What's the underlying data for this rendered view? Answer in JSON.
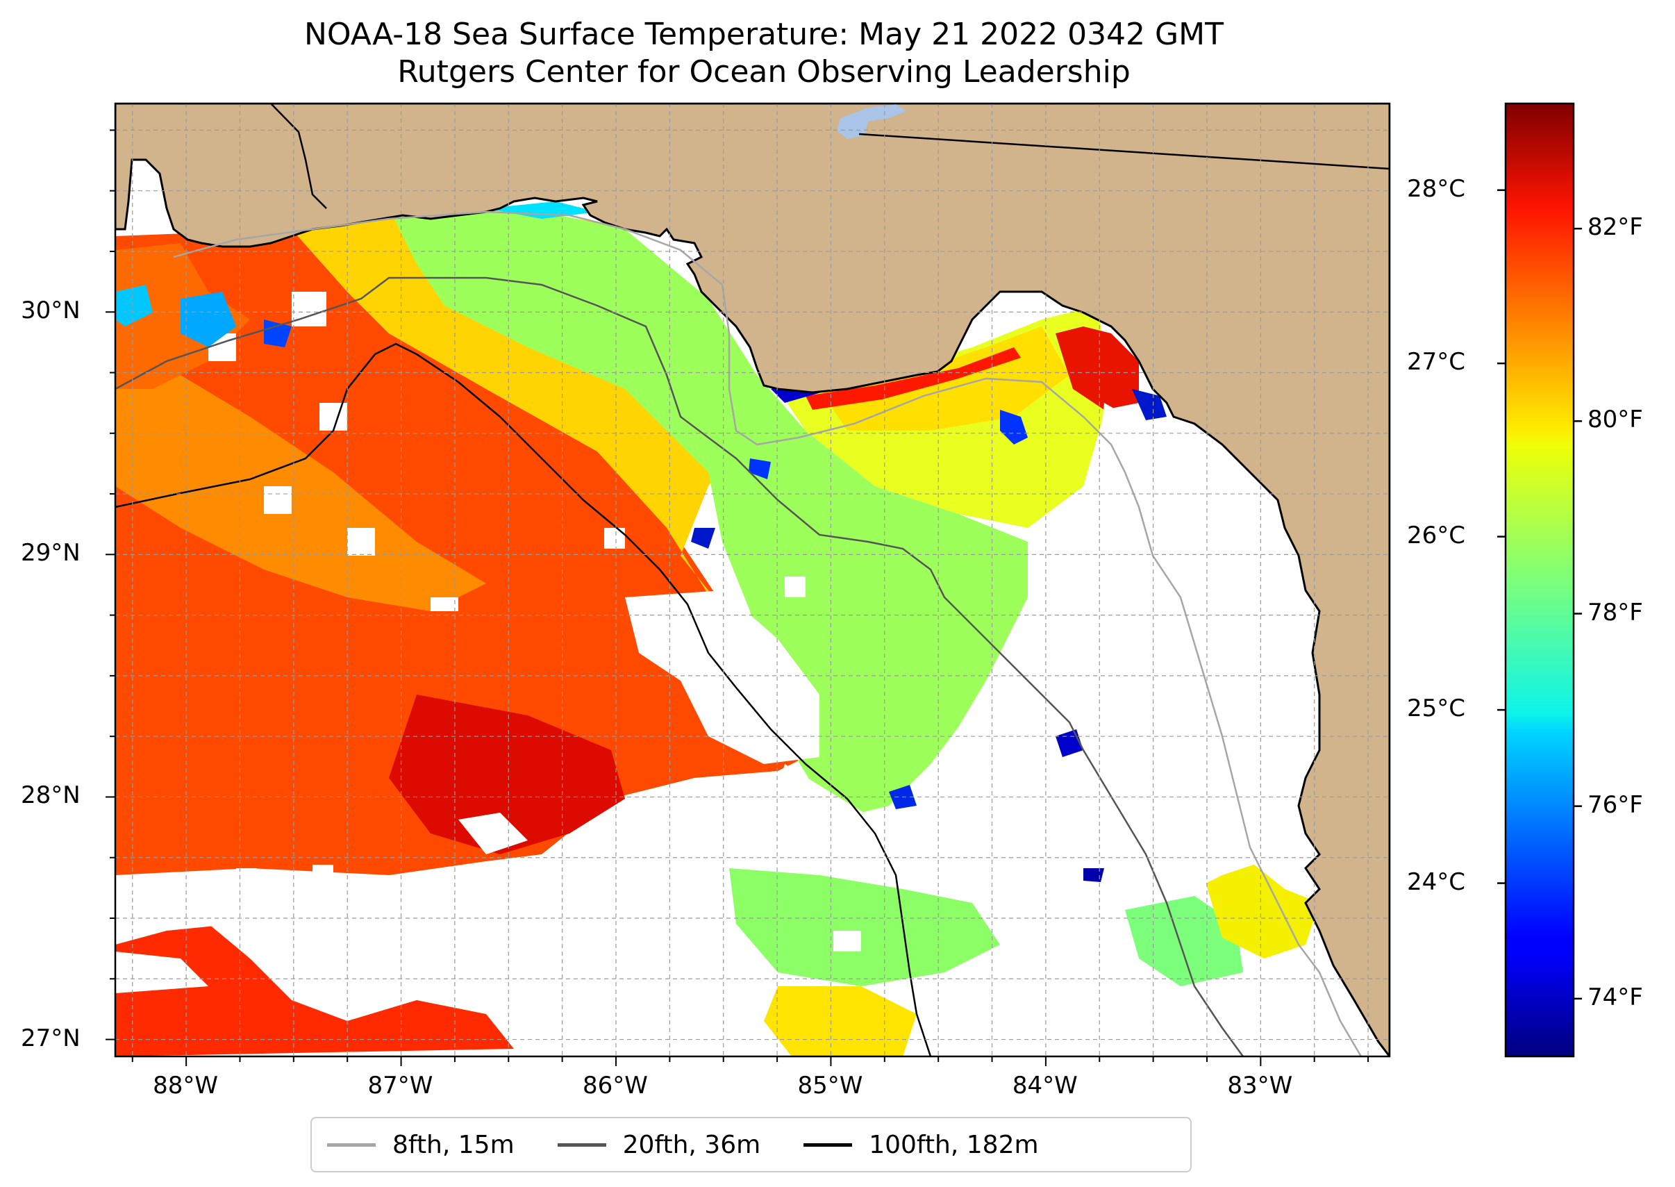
{
  "title": {
    "line1": "NOAA-18 Sea Surface Temperature: May 21 2022 0342 GMT",
    "line2": "Rutgers Center for Ocean Observing Leadership"
  },
  "map": {
    "lon_range": [
      -88.33,
      -82.4
    ],
    "lat_range": [
      26.93,
      30.86
    ],
    "lon_ticks": [
      {
        "lon": -88,
        "label": "88°W"
      },
      {
        "lon": -87,
        "label": "87°W"
      },
      {
        "lon": -86,
        "label": "86°W"
      },
      {
        "lon": -85,
        "label": "85°W"
      },
      {
        "lon": -84,
        "label": "84°W"
      },
      {
        "lon": -83,
        "label": "83°W"
      }
    ],
    "lat_ticks": [
      {
        "lat": 27,
        "label": "27°N"
      },
      {
        "lat": 28,
        "label": "28°N"
      },
      {
        "lat": 29,
        "label": "29°N"
      },
      {
        "lat": 30,
        "label": "30°N"
      }
    ],
    "colors": {
      "land": "#d2b48c",
      "coastline": "#000000",
      "lake": "#a9c4e6",
      "grid": "#9a9a9a",
      "no_data": "#ffffff"
    },
    "isobaths": [
      {
        "label": "8fth, 15m",
        "color": "#a6a6a6"
      },
      {
        "label": "20fth, 36m",
        "color": "#555555"
      },
      {
        "label": "100fth, 182m",
        "color": "#000000"
      }
    ]
  },
  "colorbar": {
    "colormap": "jet",
    "range_c": [
      23.0,
      28.5
    ],
    "celsius_ticks": [
      {
        "value": 24,
        "label": "24°C"
      },
      {
        "value": 25,
        "label": "25°C"
      },
      {
        "value": 26,
        "label": "26°C"
      },
      {
        "value": 27,
        "label": "27°C"
      },
      {
        "value": 28,
        "label": "28°C"
      }
    ],
    "fahrenheit_ticks": [
      {
        "value": 74,
        "label": "74°F"
      },
      {
        "value": 76,
        "label": "76°F"
      },
      {
        "value": 78,
        "label": "78°F"
      },
      {
        "value": 80,
        "label": "80°F"
      },
      {
        "value": 82,
        "label": "82°F"
      }
    ]
  }
}
